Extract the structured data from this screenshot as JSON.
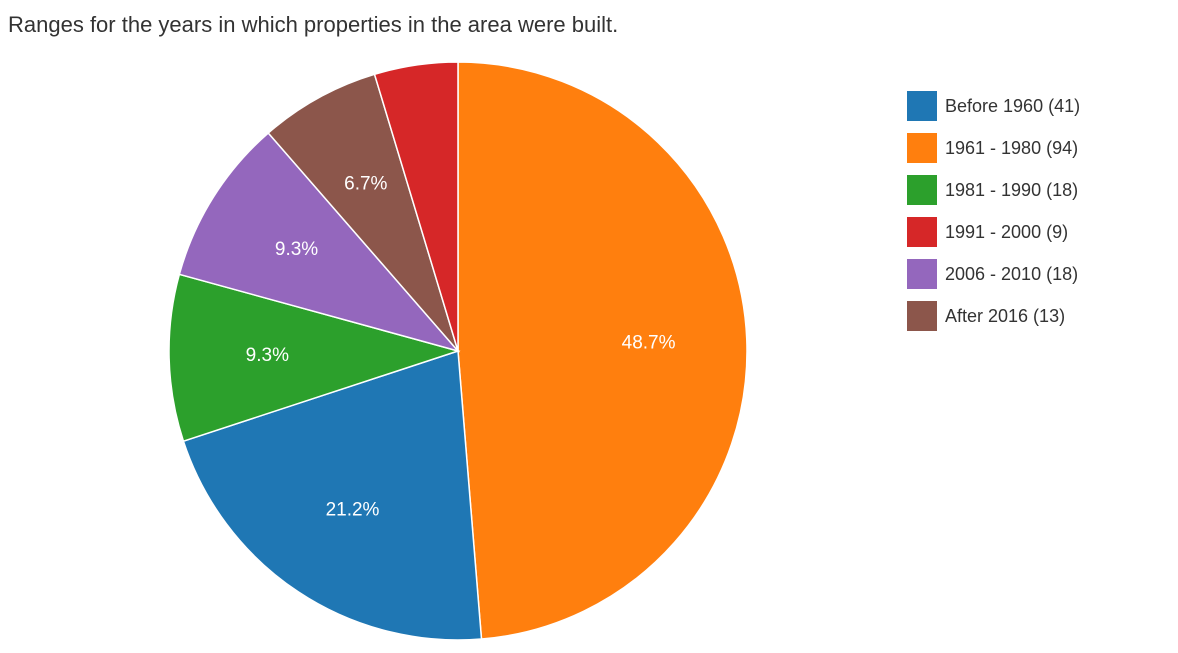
{
  "chart_data": {
    "type": "pie",
    "title": "Ranges for the years in which properties in the area were built.",
    "categories": [
      "Before 1960",
      "1961 - 1980",
      "1981 - 1990",
      "1991 - 2000",
      "2006 - 2010",
      "After 2016"
    ],
    "values": [
      41,
      94,
      18,
      9,
      18,
      13
    ],
    "legend_labels": [
      "Before 1960 (41)",
      "1961 - 1980 (94)",
      "1981 - 1990 (18)",
      "1991 - 2000 (9)",
      "2006 - 2010 (18)",
      "After 2016 (13)"
    ],
    "percent_labels": [
      "21.2%",
      "48.7%",
      "9.3%",
      "",
      "9.3%",
      "6.7%"
    ],
    "colors": [
      "#1f77b4",
      "#ff7f0e",
      "#2ca02c",
      "#d62728",
      "#9467bd",
      "#8c564b"
    ],
    "legend_position": "right"
  }
}
